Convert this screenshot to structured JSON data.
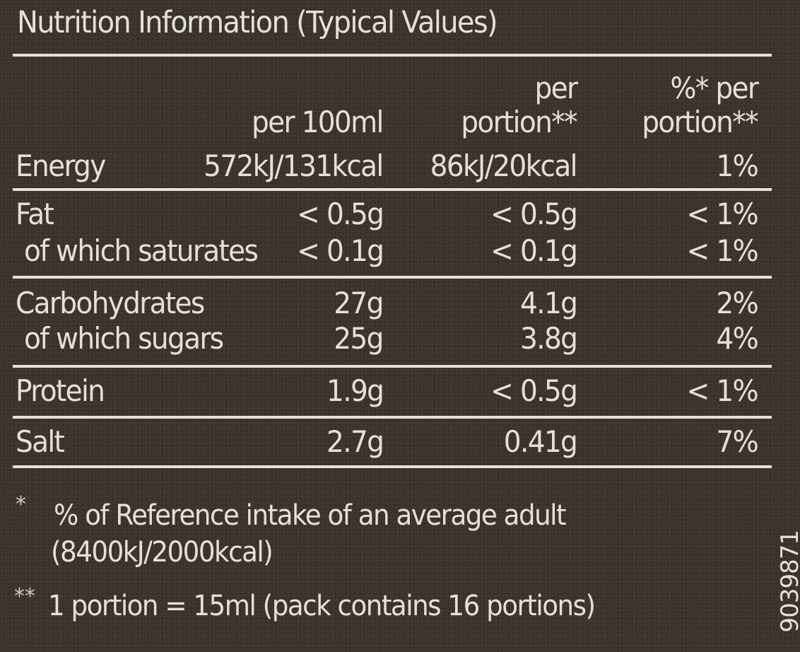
{
  "title": "Nutrition Information (Typical Values)",
  "columns": {
    "per_100": "per 100ml",
    "per_portion_line1": "per",
    "per_portion_line2": "portion**",
    "ri_line1": "%* per",
    "ri_line2": "portion**"
  },
  "rows": [
    {
      "label": "Energy",
      "per_100": "572kJ/131kcal",
      "per_portion": "86kJ/20kcal",
      "ri": "1%"
    },
    {
      "label": "Fat",
      "per_100": "< 0.5g",
      "per_portion": "< 0.5g",
      "ri": "< 1%"
    },
    {
      "label": "of which saturates",
      "per_100": "< 0.1g",
      "per_portion": "< 0.1g",
      "ri": "< 1%"
    },
    {
      "label": "Carbohydrates",
      "per_100": "27g",
      "per_portion": "4.1g",
      "ri": "2%"
    },
    {
      "label": "of which sugars",
      "per_100": "25g",
      "per_portion": "3.8g",
      "ri": "4%"
    },
    {
      "label": "Protein",
      "per_100": "1.9g",
      "per_portion": "< 0.5g",
      "ri": "< 1%"
    },
    {
      "label": "Salt",
      "per_100": "2.7g",
      "per_portion": "0.41g",
      "ri": "7%"
    }
  ],
  "footnotes": {
    "star_mark": "*",
    "star_line1": "% of Reference intake of an average adult",
    "star_line2": "(8400kJ/2000kcal)",
    "double_mark": "**",
    "double_text": "1 portion = 15ml (pack contains 16 portions)"
  },
  "code": "9039871"
}
